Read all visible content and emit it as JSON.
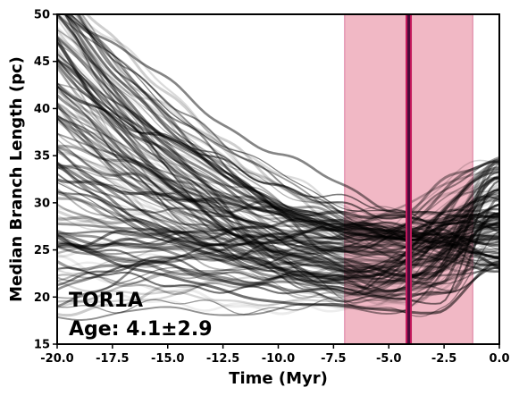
{
  "chart_data": {
    "type": "line",
    "xlabel": "Time (Myr)",
    "ylabel": "Median Branch Length (pc)",
    "xlim": [
      -20.0,
      0.0
    ],
    "ylim": [
      15,
      50
    ],
    "xticks": [
      "-20.0",
      "-17.5",
      "-15.0",
      "-12.5",
      "-10.0",
      "-7.5",
      "-5.0",
      "-2.5",
      "0.0"
    ],
    "yticks": [
      "15",
      "20",
      "25",
      "30",
      "35",
      "40",
      "45",
      "50"
    ],
    "annotation_name": "TOR1A",
    "annotation_age": "Age: 4.1±2.9",
    "age_estimate": -4.1,
    "age_range": [
      -7.0,
      -1.2
    ],
    "colors": {
      "lines": "#000000",
      "age_band": "#e8899e",
      "age_line_outer": "#c2185b",
      "age_line_inner": "#4a0a3a"
    },
    "num_realizations": 140,
    "series": [
      {
        "x": [
          -20.0,
          -15.0,
          -10.0,
          -7.0,
          -4.1,
          -2.0,
          0.0
        ],
        "values": [
          50,
          44,
          34,
          28,
          25,
          26,
          29
        ]
      },
      {
        "x": [
          -20.0,
          -15.0,
          -10.0,
          -7.0,
          -4.1,
          -2.0,
          0.0
        ],
        "values": [
          45,
          40,
          31,
          27,
          24,
          27,
          30
        ]
      },
      {
        "x": [
          -20.0,
          -15.0,
          -10.0,
          -7.0,
          -4.1,
          -2.0,
          0.0
        ],
        "values": [
          35,
          32,
          28,
          26,
          23,
          25,
          28
        ]
      },
      {
        "x": [
          -20.0,
          -15.0,
          -10.0,
          -7.0,
          -4.1,
          -2.0,
          0.0
        ],
        "values": [
          30,
          28,
          26,
          24,
          22,
          24,
          27
        ]
      },
      {
        "x": [
          -20.0,
          -15.0,
          -10.0,
          -7.0,
          -4.1,
          -2.0,
          0.0
        ],
        "values": [
          25,
          24,
          23,
          22,
          21,
          23,
          26
        ]
      }
    ]
  }
}
